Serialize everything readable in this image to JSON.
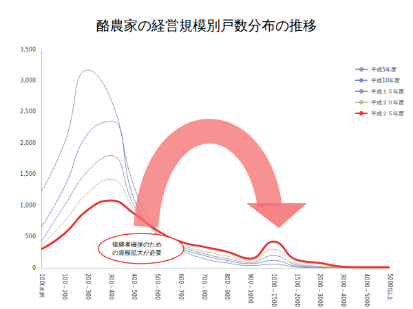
{
  "chart_data": {
    "type": "line",
    "title": "酪農家の経営規模別戸数分布の推移",
    "annotation": "後継者確保のため\nの規模拡大が必要",
    "categories": [
      "100t未満",
      "100～200",
      "200～300",
      "300～400",
      "400～500",
      "500～600",
      "600～700",
      "700～800",
      "800～900",
      "900～1000",
      "1000～1500",
      "1500～2000",
      "2000～3000",
      "3000～4000",
      "4000～5000",
      "5000t以上"
    ],
    "series": [
      {
        "name": "平成5年度",
        "color": "#8a99b5",
        "values": [
          1220,
          2000,
          3170,
          2700,
          1300,
          600,
          300,
          150,
          80,
          40,
          60,
          15,
          5,
          2,
          1,
          1
        ]
      },
      {
        "name": "平成10年度",
        "color": "#6f8fcf",
        "values": [
          650,
          1300,
          2150,
          2350,
          1100,
          550,
          320,
          200,
          120,
          70,
          120,
          30,
          10,
          5,
          2,
          2
        ]
      },
      {
        "name": "平成１５年度",
        "color": "#a08fb5",
        "values": [
          420,
          1000,
          1550,
          1800,
          1000,
          550,
          350,
          230,
          150,
          90,
          200,
          50,
          20,
          8,
          3,
          3
        ]
      },
      {
        "name": "平成２０年度",
        "color": "#c4bd8c",
        "values": [
          350,
          750,
          1200,
          1420,
          950,
          530,
          370,
          270,
          190,
          120,
          300,
          70,
          30,
          10,
          4,
          4
        ]
      },
      {
        "name": "平成２５年度",
        "color": "#e8352e",
        "values": [
          300,
          550,
          930,
          1080,
          870,
          600,
          420,
          340,
          260,
          150,
          420,
          130,
          80,
          20,
          10,
          10
        ]
      }
    ],
    "ylim": [
      0,
      3500
    ],
    "yticks": [
      0,
      500,
      {
        "value": 1000,
        "label": "1,000"
      },
      {
        "value": 1500,
        "label": "1,500"
      },
      {
        "value": 2000,
        "label": "2,000"
      },
      {
        "value": 2500,
        "label": "2,500"
      },
      {
        "value": 3000,
        "label": "3,000"
      },
      {
        "value": 3500,
        "label": "3,500"
      }
    ],
    "grid": false,
    "legend": "top-right"
  }
}
